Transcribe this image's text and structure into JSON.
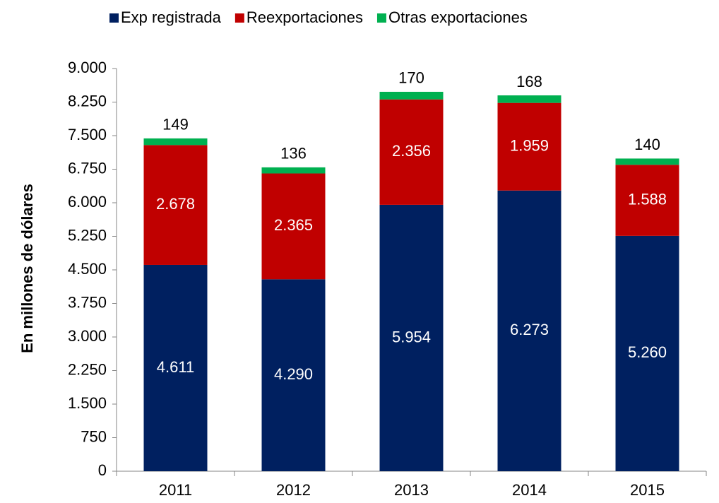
{
  "chart_data": {
    "type": "stacked_bar",
    "y_label": "En millones de  dólares",
    "categories": [
      "2011",
      "2012",
      "2013",
      "2014",
      "2015"
    ],
    "series": [
      {
        "name": "Exp registrada",
        "color": "#002060",
        "values": [
          4611,
          4290,
          5954,
          6273,
          5260
        ],
        "value_labels": [
          "4.611",
          "4.290",
          "5.954",
          "6.273",
          "5.260"
        ]
      },
      {
        "name": "Reexportaciones",
        "color": "#c00000",
        "values": [
          2678,
          2365,
          2356,
          1959,
          1588
        ],
        "value_labels": [
          "2.678",
          "2.365",
          "2.356",
          "1.959",
          "1.588"
        ]
      },
      {
        "name": "Otras exportaciones",
        "color": "#00b050",
        "values": [
          149,
          136,
          170,
          168,
          140
        ]
      }
    ],
    "ylim": [
      0,
      9000
    ],
    "yticks": [
      0,
      750,
      {
        "value": 1500,
        "label": "1.500"
      },
      {
        "value": 2250,
        "label": "2.250"
      },
      {
        "value": 3000,
        "label": "3.000"
      },
      {
        "value": 3750,
        "label": "3.750"
      },
      {
        "value": 4500,
        "label": "4.500"
      },
      {
        "value": 5250,
        "label": "5.250"
      },
      {
        "value": 6000,
        "label": "6.000"
      },
      {
        "value": 6750,
        "label": "6.750"
      },
      {
        "value": 7500,
        "label": "7.500"
      },
      {
        "value": 8250,
        "label": "8.250"
      },
      {
        "value": 9000,
        "label": "9.000"
      }
    ],
    "legend": "top"
  }
}
